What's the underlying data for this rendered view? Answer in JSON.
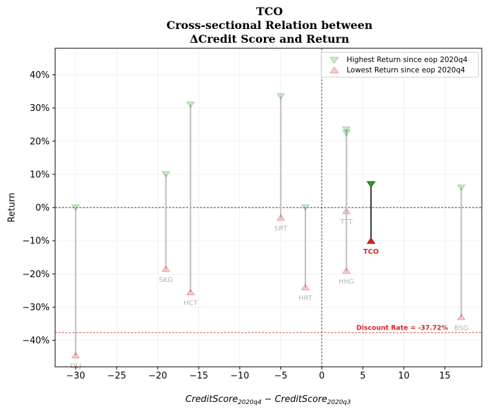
{
  "chart_data": {
    "type": "scatter",
    "title": [
      "TCO",
      "Cross-sectional Relation between",
      "ΔCredit Score and Return"
    ],
    "xlabel": "CreditScore",
    "xlabel_sub1": "2020q4",
    "xlabel_mid": " − CreditScore",
    "xlabel_sub2": "2020q3",
    "ylabel": "Return",
    "xlim": [
      -32.5,
      19.5
    ],
    "ylim": [
      -48,
      48
    ],
    "xticks": [
      -30,
      -25,
      -20,
      -15,
      -10,
      -5,
      0,
      5,
      10,
      15
    ],
    "xtick_labels": [
      "−30",
      "−25",
      "−20",
      "−15",
      "−10",
      "−5",
      "0",
      "5",
      "10",
      "15"
    ],
    "yticks": [
      -40,
      -30,
      -20,
      -10,
      0,
      10,
      20,
      30,
      40
    ],
    "ytick_labels": [
      "−40%",
      "−30%",
      "−20%",
      "−10%",
      "0%",
      "10%",
      "20%",
      "30%",
      "40%"
    ],
    "grid": true,
    "legend_position": "top-right",
    "legend": [
      {
        "label": "Highest Return since eop 2020q4",
        "marker": "triangle-down",
        "color": "#2ca02c"
      },
      {
        "label": "Lowest Return since eop 2020q4",
        "marker": "triangle-up",
        "color": "#d62728"
      }
    ],
    "highlight": "TCO",
    "points": [
      {
        "name": "DLJ",
        "x": -30,
        "high": 0,
        "low": -44.5
      },
      {
        "name": "SKG",
        "x": -19,
        "high": 10,
        "low": -18.5
      },
      {
        "name": "HCT",
        "x": -16,
        "high": 31,
        "low": -25.5
      },
      {
        "name": "SRT",
        "x": -5,
        "high": 33.5,
        "low": -3
      },
      {
        "name": "HRT",
        "x": -2,
        "high": 0,
        "low": -24
      },
      {
        "name": "TTT",
        "x": 3,
        "high": 23.5,
        "low": -1
      },
      {
        "name": "HHG",
        "x": 3,
        "high": 22.5,
        "low": -19
      },
      {
        "name": "TCO",
        "x": 6,
        "high": 7,
        "low": -10
      },
      {
        "name": "BSG",
        "x": 17,
        "high": 6,
        "low": -33
      }
    ],
    "discount_rate": {
      "label": "Discount Rate = -37.72%",
      "value": -37.72
    }
  }
}
